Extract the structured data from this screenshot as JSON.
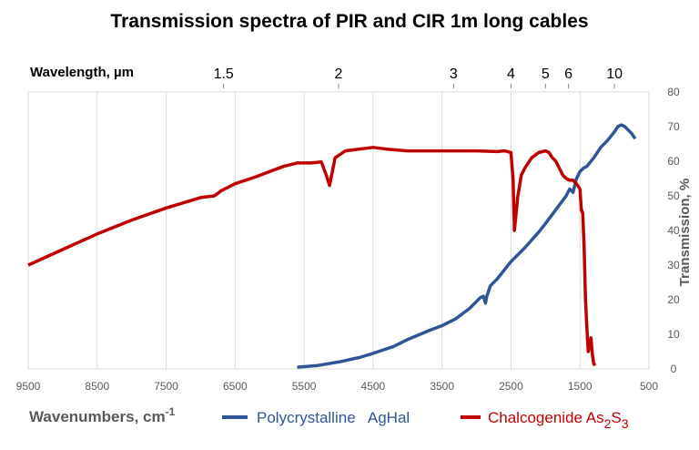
{
  "chart_data": {
    "type": "line",
    "title": "Transmission spectra of PIR and CIR  1m   long cables",
    "xlabel": "Wavenumbers,  cm",
    "xlabel_sup": "-1",
    "ylabel": "Transmission, %",
    "top_axis_label": "Wavelength,  µm",
    "xlim": [
      9500,
      500
    ],
    "ylim": [
      0,
      80
    ],
    "x_ticks": [
      "9500",
      "8500",
      "7500",
      "6500",
      "5500",
      "4500",
      "3500",
      "2500",
      "1500",
      "500"
    ],
    "y_ticks": [
      "0",
      "10",
      "20",
      "30",
      "40",
      "50",
      "60",
      "70",
      "80"
    ],
    "top_ticks": [
      {
        "label": "1.5",
        "um": 1.5
      },
      {
        "label": "2",
        "um": 2
      },
      {
        "label": "3",
        "um": 3
      },
      {
        "label": "4",
        "um": 4
      },
      {
        "label": "5",
        "um": 5
      },
      {
        "label": "6",
        "um": 6
      },
      {
        "label": "10",
        "um": 10
      }
    ],
    "grid": "vertical",
    "legend_placement": "bottom",
    "series": [
      {
        "name": "Polycrystalline   AgHal",
        "color": "#2f5597",
        "x": [
          5600,
          5300,
          5000,
          4700,
          4500,
          4200,
          4000,
          3700,
          3500,
          3300,
          3100,
          3000,
          2950,
          2900,
          2870,
          2850,
          2800,
          2700,
          2500,
          2300,
          2100,
          2000,
          1850,
          1700,
          1650,
          1600,
          1550,
          1500,
          1450,
          1400,
          1300,
          1200,
          1100,
          1000,
          950,
          900,
          850,
          800,
          750,
          700
        ],
        "y": [
          0.5,
          1,
          2,
          3.3,
          4.5,
          6.5,
          8.5,
          11,
          12.5,
          14.5,
          17.5,
          19.5,
          20.5,
          21,
          19,
          21,
          24,
          26,
          31,
          35,
          39.5,
          42,
          46,
          50,
          52,
          51,
          55,
          57,
          58,
          58.5,
          61,
          64,
          66,
          68.5,
          70,
          70.5,
          70,
          69,
          68,
          66.5
        ]
      },
      {
        "name": "Chalcogenide As",
        "name_sub1": "2",
        "name_mid": "S",
        "name_sub2": "3",
        "color": "#c00000",
        "x": [
          9500,
          9000,
          8500,
          8000,
          7500,
          7000,
          6800,
          6700,
          6500,
          6200,
          6000,
          5800,
          5600,
          5400,
          5250,
          5180,
          5130,
          5050,
          4900,
          4700,
          4500,
          4300,
          4000,
          3700,
          3400,
          3000,
          2700,
          2600,
          2550,
          2500,
          2470,
          2450,
          2400,
          2350,
          2300,
          2200,
          2100,
          2000,
          1950,
          1900,
          1850,
          1800,
          1750,
          1700,
          1650,
          1600,
          1550,
          1500,
          1480,
          1460,
          1440,
          1420,
          1400,
          1380,
          1360,
          1340,
          1320,
          1300,
          1280
        ],
        "y": [
          30,
          34.5,
          39,
          43,
          46.5,
          49.5,
          50,
          51.5,
          53.5,
          55.5,
          57,
          58.5,
          59.5,
          59.5,
          59.8,
          56,
          53,
          61,
          63,
          63.5,
          64,
          63.5,
          63,
          63,
          63,
          63,
          62.8,
          63,
          62.8,
          62.5,
          55,
          40,
          50,
          56,
          58,
          61,
          62.5,
          63,
          62.5,
          61,
          60,
          58,
          56,
          55,
          54.5,
          54.5,
          53.5,
          52,
          46,
          45,
          35,
          20,
          12,
          5,
          7,
          9,
          4,
          1.5,
          1
        ]
      }
    ]
  }
}
